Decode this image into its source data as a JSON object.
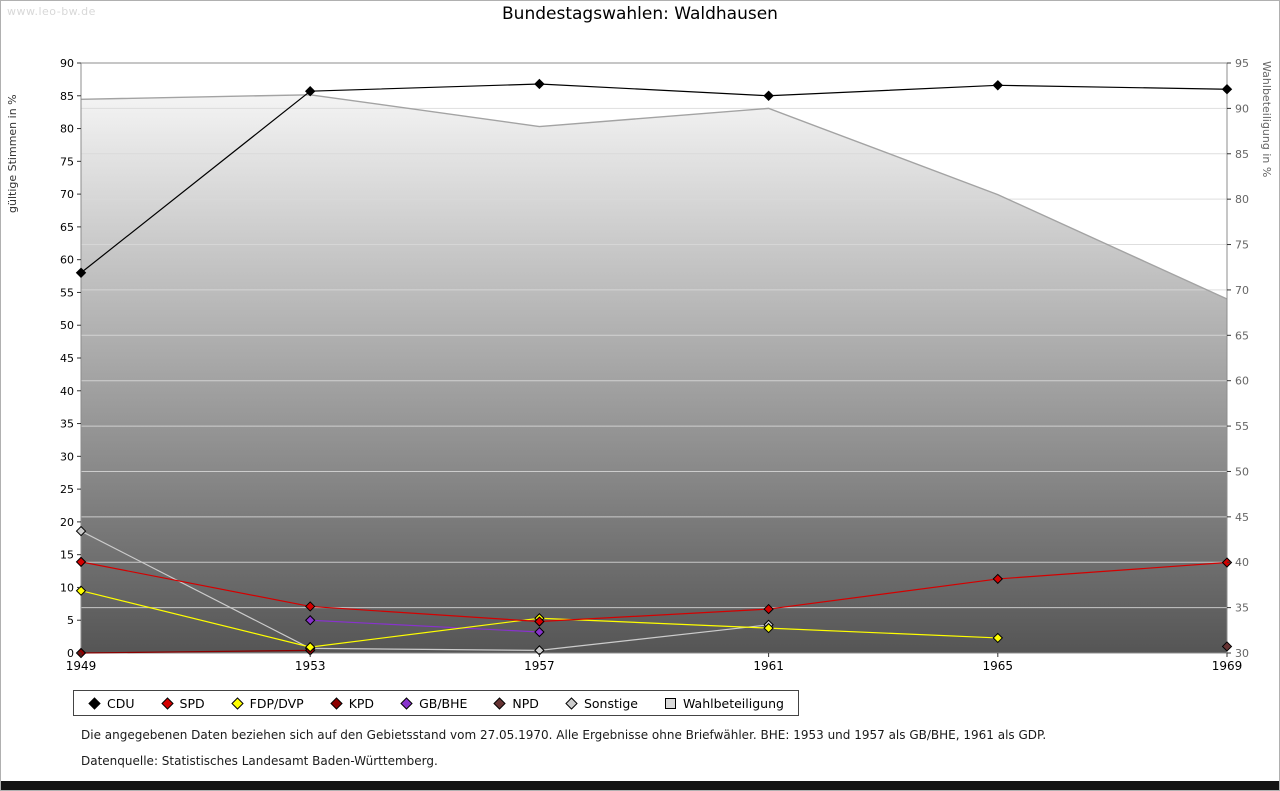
{
  "page": {
    "watermark": "www.leo-bw.de",
    "footnotes": [
      "Die angegebenen Daten beziehen sich auf den Gebietsstand vom 27.05.1970. Alle Ergebnisse ohne Briefwähler. BHE: 1953 und 1957 als GB/BHE, 1961 als GDP.",
      "Datenquelle: Statistisches Landesamt Baden-Württemberg."
    ]
  },
  "chart_data": {
    "type": "line",
    "title": "Bundestagswahlen: Waldhausen",
    "x": [
      1949,
      1953,
      1957,
      1961,
      1965,
      1969
    ],
    "ylabel_left": "gültige Stimmen in %",
    "ylabel_right": "Wahlbeteiligung in %",
    "ylim_left": [
      0,
      90
    ],
    "ylim_right": [
      30,
      95
    ],
    "ytick_step": 5,
    "grid": true,
    "legend_position": "bottom",
    "area_gradient": [
      "#fdfdfd",
      "#555555"
    ],
    "series": [
      {
        "name": "CDU",
        "axis": "left",
        "color": "#000000",
        "marker": "diamond",
        "values": [
          58.0,
          85.7,
          86.8,
          85.0,
          86.6,
          86.0
        ]
      },
      {
        "name": "SPD",
        "axis": "left",
        "color": "#d40000",
        "marker": "diamond",
        "values": [
          13.9,
          7.1,
          4.8,
          6.7,
          11.3,
          13.8
        ]
      },
      {
        "name": "FDP/DVP",
        "axis": "left",
        "color": "#ffff00",
        "marker": "diamond",
        "values": [
          9.5,
          0.9,
          5.3,
          3.8,
          2.3,
          null
        ]
      },
      {
        "name": "KPD",
        "axis": "left",
        "color": "#8b0000",
        "marker": "diamond",
        "values": [
          0.0,
          0.4,
          null,
          null,
          null,
          null
        ]
      },
      {
        "name": "GB/BHE",
        "axis": "left",
        "color": "#8833cc",
        "marker": "diamond",
        "values": [
          null,
          5.0,
          3.2,
          null,
          null,
          null
        ]
      },
      {
        "name": "NPD",
        "axis": "left",
        "color": "#663333",
        "marker": "diamond",
        "values": [
          null,
          null,
          null,
          null,
          null,
          1.0
        ]
      },
      {
        "name": "Sonstige",
        "axis": "left",
        "color": "#cccccc",
        "marker": "diamond",
        "values": [
          18.6,
          0.7,
          0.4,
          4.3,
          null,
          null
        ]
      },
      {
        "name": "Wahlbeteiligung",
        "axis": "right",
        "color": "#a3a3a3",
        "marker": "square",
        "area": true,
        "values": [
          91.0,
          91.5,
          88.0,
          90.0,
          80.5,
          69.0
        ]
      }
    ]
  }
}
